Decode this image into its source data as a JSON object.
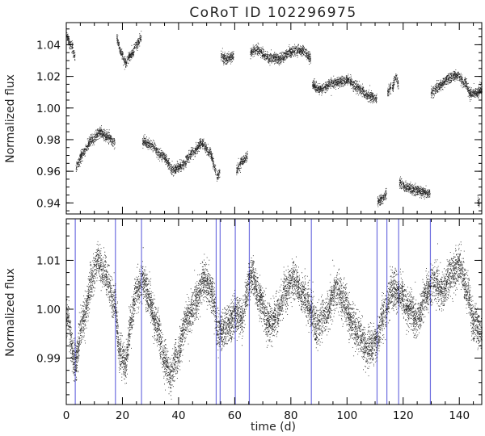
{
  "chart_data": [
    {
      "type": "scatter",
      "title": "CoRoT ID 102296975",
      "xlabel": "",
      "ylabel": "Normalized flux",
      "xlim": [
        0,
        148
      ],
      "ylim": [
        0.933,
        1.054
      ],
      "xticks": [
        0,
        20,
        40,
        60,
        80,
        100,
        120,
        140
      ],
      "xticklabels": [
        "",
        "",
        "",
        "",
        "",
        "",
        "",
        ""
      ],
      "yticks": [
        0.94,
        0.96,
        0.98,
        1.0,
        1.02,
        1.04
      ],
      "yticklabels": [
        "0.94",
        "0.96",
        "0.98",
        "1.00",
        "1.02",
        "1.04"
      ],
      "grid": false,
      "point_color": "#000000",
      "segments": [
        {
          "x": [
            0.0,
            1.5,
            3.0
          ],
          "y": [
            1.046,
            1.04,
            1.033
          ]
        },
        {
          "x": [
            3.3,
            6.0,
            9.0,
            12.0,
            15.0,
            17.2
          ],
          "y": [
            0.963,
            0.972,
            0.98,
            0.985,
            0.982,
            0.978
          ]
        },
        {
          "x": [
            17.8,
            19.5,
            21.0,
            23.0,
            25.0,
            26.6
          ],
          "y": [
            1.044,
            1.035,
            1.029,
            1.034,
            1.04,
            1.045
          ]
        },
        {
          "x": [
            27.0,
            30.0,
            34.0,
            38.0,
            41.0,
            45.0,
            48.0,
            51.0,
            53.3
          ],
          "y": [
            0.979,
            0.977,
            0.97,
            0.961,
            0.964,
            0.972,
            0.978,
            0.972,
            0.96
          ]
        },
        {
          "x": [
            53.5,
            54.6
          ],
          "y": [
            0.957,
            0.959
          ]
        },
        {
          "x": [
            55.0,
            57.0,
            59.5
          ],
          "y": [
            1.033,
            1.031,
            1.033
          ]
        },
        {
          "x": [
            60.5,
            62.5,
            64.5
          ],
          "y": [
            0.961,
            0.966,
            0.97
          ]
        },
        {
          "x": [
            65.5,
            68.0,
            72.0,
            76.0,
            80.0,
            84.0,
            87.0
          ],
          "y": [
            1.035,
            1.037,
            1.032,
            1.031,
            1.036,
            1.037,
            1.032
          ]
        },
        {
          "x": [
            87.5,
            90.0,
            95.0,
            100.0,
            104.0,
            107.0,
            110.5
          ],
          "y": [
            1.015,
            1.012,
            1.016,
            1.018,
            1.013,
            1.008,
            1.006
          ]
        },
        {
          "x": [
            110.8,
            112.5,
            114.0
          ],
          "y": [
            0.941,
            0.943,
            0.946
          ]
        },
        {
          "x": [
            114.3,
            115.6
          ],
          "y": [
            1.01,
            1.013
          ]
        },
        {
          "x": [
            116.0,
            117.2,
            118.2
          ],
          "y": [
            1.013,
            1.02,
            1.015
          ]
        },
        {
          "x": [
            118.5,
            121.0,
            125.0,
            129.5
          ],
          "y": [
            0.953,
            0.95,
            0.948,
            0.946
          ]
        },
        {
          "x": [
            129.8,
            133.0,
            136.0,
            139.0,
            142.0,
            144.0,
            146.0,
            148.0
          ],
          "y": [
            1.01,
            1.014,
            1.019,
            1.021,
            1.016,
            1.009,
            1.01,
            1.012
          ]
        },
        {
          "x": [
            146.4,
            147.2
          ],
          "y": [
            0.942,
            0.94
          ]
        }
      ]
    },
    {
      "type": "scatter",
      "title": "",
      "xlabel": "time (d)",
      "ylabel": "Normalized flux",
      "xlim": [
        0,
        148
      ],
      "ylim": [
        0.9805,
        1.0185
      ],
      "xticks": [
        0,
        20,
        40,
        60,
        80,
        100,
        120,
        140
      ],
      "xticklabels": [
        "0",
        "20",
        "40",
        "60",
        "80",
        "100",
        "120",
        "140"
      ],
      "yticks": [
        0.99,
        1.0,
        1.01
      ],
      "yticklabels": [
        "0.99",
        "1.00",
        "1.01"
      ],
      "grid": false,
      "point_color": "#000000",
      "series": [
        {
          "x": [
            0,
            3,
            6,
            9,
            11,
            13,
            17,
            19,
            21,
            23,
            25,
            27,
            29,
            32,
            35,
            37,
            39,
            43,
            46,
            49,
            52,
            54,
            56,
            58,
            60,
            62,
            66,
            69,
            72,
            75,
            78,
            81,
            84,
            87,
            89,
            92,
            96,
            99,
            101,
            104,
            107,
            110,
            113,
            116,
            119,
            122,
            125,
            128,
            131,
            134,
            137,
            140,
            143,
            145,
            148
          ],
          "y": [
            0.999,
            0.989,
            0.998,
            1.006,
            1.01,
            1.008,
            1.002,
            0.991,
            0.989,
            0.998,
            1.004,
            1.006,
            1.003,
            0.997,
            0.99,
            0.986,
            0.99,
            0.998,
            1.002,
            1.006,
            1.003,
            0.995,
            0.996,
            0.997,
            0.999,
            0.998,
            1.007,
            1.002,
            0.997,
            0.999,
            1.004,
            1.006,
            1.003,
            1.0,
            0.996,
            0.999,
            1.004,
            1.002,
            0.998,
            0.995,
            0.992,
            0.993,
            0.999,
            1.004,
            1.003,
            1.0,
            0.998,
            1.003,
            1.006,
            1.004,
            1.007,
            1.009,
            1.003,
            0.997,
            0.996
          ]
        }
      ],
      "gap_markers": {
        "color": "#6f6fe0",
        "x": [
          3.2,
          17.5,
          26.8,
          53.4,
          54.8,
          60.2,
          65.2,
          87.3,
          110.7,
          114.2,
          118.4,
          129.7
        ]
      }
    }
  ]
}
